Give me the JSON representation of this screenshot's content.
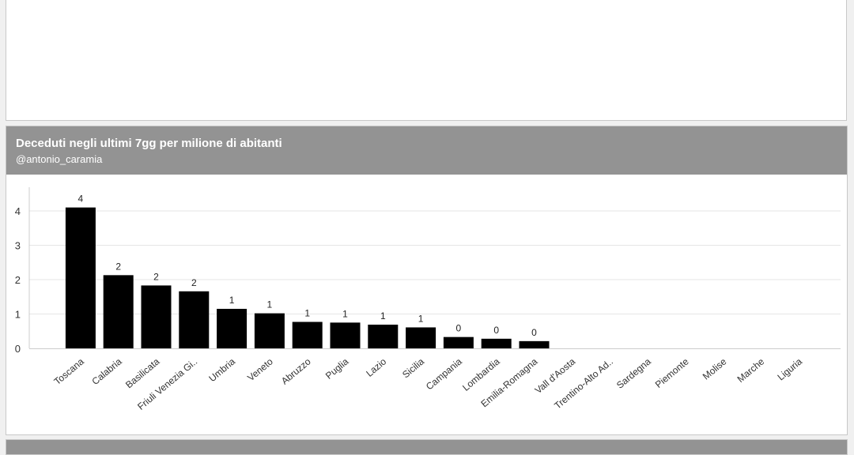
{
  "panel": {
    "title": "Deceduti negli ultimi 7gg per milione di abitanti",
    "subtitle": "@antonio_caramia"
  },
  "chart_data": {
    "type": "bar",
    "title": "Deceduti negli ultimi 7gg per milione di abitanti",
    "subtitle": "@antonio_caramia",
    "xlabel": "",
    "ylabel": "",
    "ylim": [
      0,
      4.7
    ],
    "yticks": [
      0,
      1,
      2,
      3,
      4
    ],
    "grid": true,
    "bar_color": "#000000",
    "categories": [
      "Toscana",
      "Calabria",
      "Basilicata",
      "Friuli Venezia Gi..",
      "Umbria",
      "Veneto",
      "Abruzzo",
      "Puglia",
      "Lazio",
      "Sicilia",
      "Campania",
      "Lombardia",
      "Emilia-Romagna",
      "Vall d'Aosta",
      "Trentino-Alto Ad..",
      "Sardegna",
      "Piemonte",
      "Molise",
      "Marche",
      "Liguria"
    ],
    "values": [
      4.1,
      2.13,
      1.83,
      1.66,
      1.15,
      1.02,
      0.77,
      0.75,
      0.69,
      0.61,
      0.33,
      0.28,
      0.21,
      0,
      0,
      0,
      0,
      0,
      0,
      0
    ],
    "data_labels": [
      "4",
      "2",
      "2",
      "2",
      "1",
      "1",
      "1",
      "1",
      "1",
      "1",
      "0",
      "0",
      "0",
      "",
      "",
      "",
      "",
      "",
      "",
      ""
    ]
  }
}
